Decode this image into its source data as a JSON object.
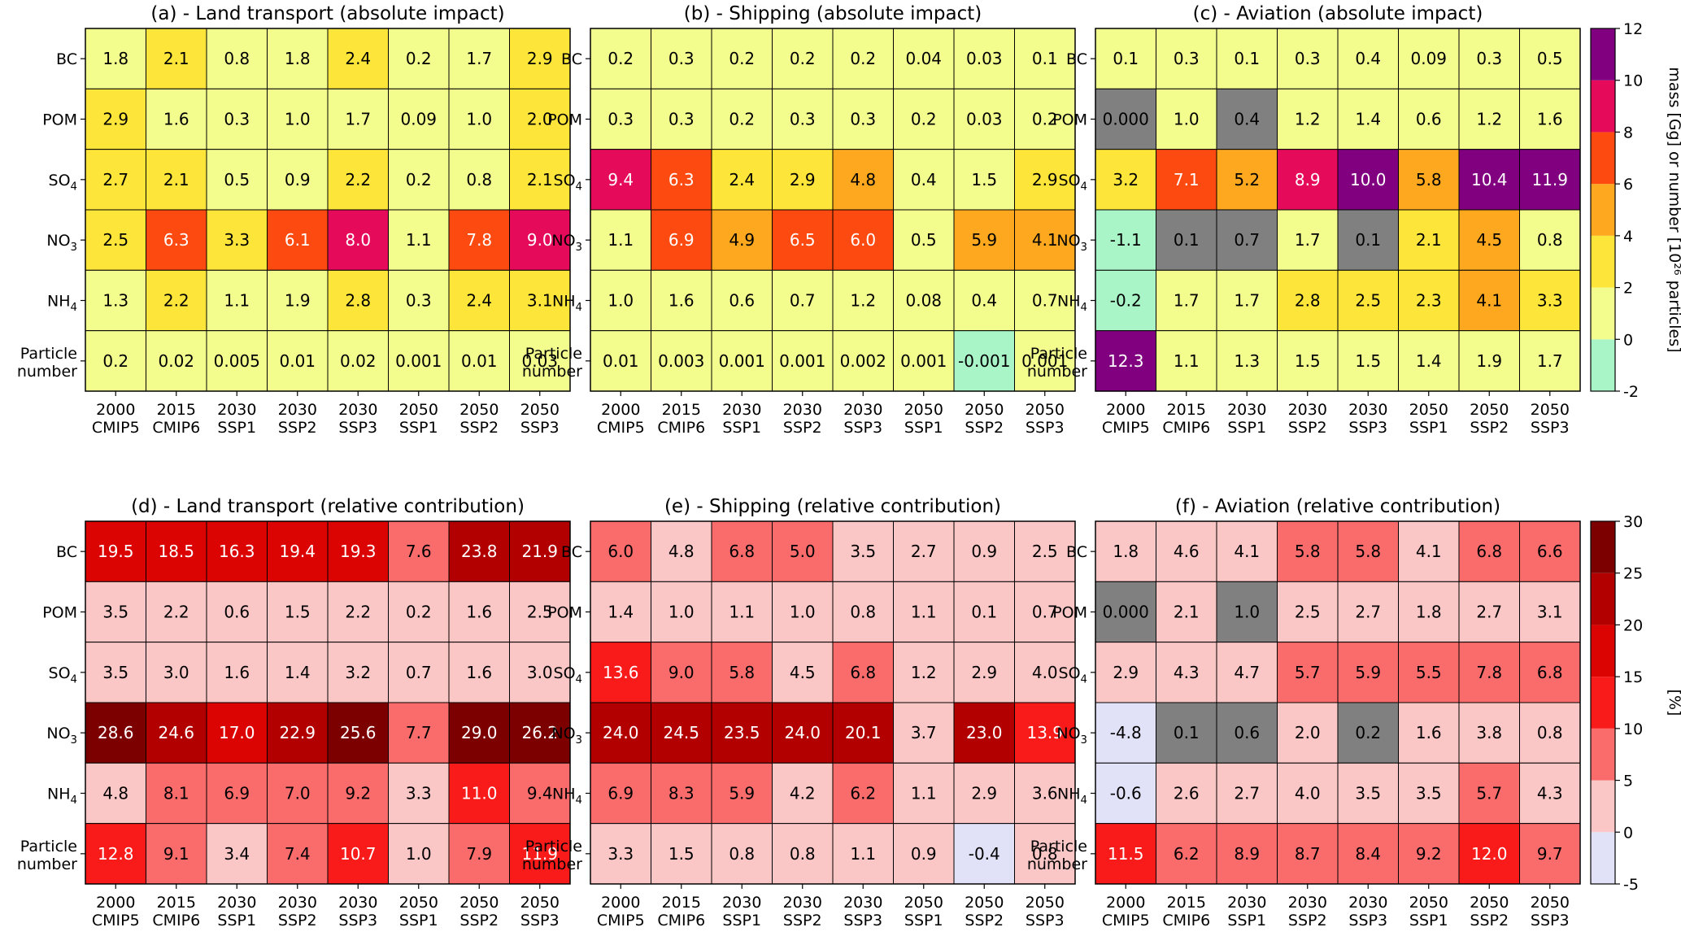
{
  "chart_data": [
    {
      "type": "heatmap",
      "title": "(a) - Land transport (absolute impact)",
      "rows": [
        "BC",
        "POM",
        "SO4",
        "NO3",
        "NH4",
        "Particle number"
      ],
      "columns": [
        "2000 CMIP5",
        "2015 CMIP6",
        "2030 SSP1",
        "2030 SSP2",
        "2030 SSP3",
        "2050 SSP1",
        "2050 SSP2",
        "2050 SSP3"
      ],
      "values": [
        [
          "1.8",
          "2.1",
          "0.8",
          "1.8",
          "2.4",
          "0.2",
          "1.7",
          "2.9"
        ],
        [
          "2.9",
          "1.6",
          "0.3",
          "1.0",
          "1.7",
          "0.09",
          "1.0",
          "2.0"
        ],
        [
          "2.7",
          "2.1",
          "0.5",
          "0.9",
          "2.2",
          "0.2",
          "0.8",
          "2.1"
        ],
        [
          "2.5",
          "6.3",
          "3.3",
          "6.1",
          "8.0",
          "1.1",
          "7.8",
          "9.0"
        ],
        [
          "1.3",
          "2.2",
          "1.1",
          "1.9",
          "2.8",
          "0.3",
          "2.4",
          "3.1"
        ],
        [
          "0.2",
          "0.02",
          "0.005",
          "0.01",
          "0.02",
          "0.001",
          "0.01",
          "0.03"
        ]
      ],
      "colorbar": "absolute",
      "grey_cells": []
    },
    {
      "type": "heatmap",
      "title": "(b) - Shipping (absolute impact)",
      "rows": [
        "BC",
        "POM",
        "SO4",
        "NO3",
        "NH4",
        "Particle number"
      ],
      "columns": [
        "2000 CMIP5",
        "2015 CMIP6",
        "2030 SSP1",
        "2030 SSP2",
        "2030 SSP3",
        "2050 SSP1",
        "2050 SSP2",
        "2050 SSP3"
      ],
      "values": [
        [
          "0.2",
          "0.3",
          "0.2",
          "0.2",
          "0.2",
          "0.04",
          "0.03",
          "0.1"
        ],
        [
          "0.3",
          "0.3",
          "0.2",
          "0.3",
          "0.3",
          "0.2",
          "0.03",
          "0.2"
        ],
        [
          "9.4",
          "6.3",
          "2.4",
          "2.9",
          "4.8",
          "0.4",
          "1.5",
          "2.9"
        ],
        [
          "1.1",
          "6.9",
          "4.9",
          "6.5",
          "6.0",
          "0.5",
          "5.9",
          "4.1"
        ],
        [
          "1.0",
          "1.6",
          "0.6",
          "0.7",
          "1.2",
          "0.08",
          "0.4",
          "0.7"
        ],
        [
          "0.01",
          "0.003",
          "0.001",
          "0.001",
          "0.002",
          "0.001",
          "-0.001",
          "0.001"
        ]
      ],
      "colorbar": "absolute",
      "grey_cells": []
    },
    {
      "type": "heatmap",
      "title": "(c) - Aviation (absolute impact)",
      "rows": [
        "BC",
        "POM",
        "SO4",
        "NO3",
        "NH4",
        "Particle number"
      ],
      "columns": [
        "2000 CMIP5",
        "2015 CMIP6",
        "2030 SSP1",
        "2030 SSP2",
        "2030 SSP3",
        "2050 SSP1",
        "2050 SSP2",
        "2050 SSP3"
      ],
      "values": [
        [
          "0.1",
          "0.3",
          "0.1",
          "0.3",
          "0.4",
          "0.09",
          "0.3",
          "0.5"
        ],
        [
          "0.000",
          "1.0",
          "0.4",
          "1.2",
          "1.4",
          "0.6",
          "1.2",
          "1.6"
        ],
        [
          "3.2",
          "7.1",
          "5.2",
          "8.9",
          "10.0",
          "5.8",
          "10.4",
          "11.9"
        ],
        [
          "-1.1",
          "0.1",
          "0.7",
          "1.7",
          "0.1",
          "2.1",
          "4.5",
          "0.8"
        ],
        [
          "-0.2",
          "1.7",
          "1.7",
          "2.8",
          "2.5",
          "2.3",
          "4.1",
          "3.3"
        ],
        [
          "12.3",
          "1.1",
          "1.3",
          "1.5",
          "1.5",
          "1.4",
          "1.9",
          "1.7"
        ]
      ],
      "colorbar": "absolute",
      "grey_cells": [
        [
          1,
          0
        ],
        [
          1,
          2
        ],
        [
          3,
          1
        ],
        [
          3,
          2
        ],
        [
          3,
          4
        ]
      ]
    },
    {
      "type": "heatmap",
      "title": "(d) - Land transport (relative contribution)",
      "rows": [
        "BC",
        "POM",
        "SO4",
        "NO3",
        "NH4",
        "Particle number"
      ],
      "columns": [
        "2000 CMIP5",
        "2015 CMIP6",
        "2030 SSP1",
        "2030 SSP2",
        "2030 SSP3",
        "2050 SSP1",
        "2050 SSP2",
        "2050 SSP3"
      ],
      "values": [
        [
          "19.5",
          "18.5",
          "16.3",
          "19.4",
          "19.3",
          "7.6",
          "23.8",
          "21.9"
        ],
        [
          "3.5",
          "2.2",
          "0.6",
          "1.5",
          "2.2",
          "0.2",
          "1.6",
          "2.5"
        ],
        [
          "3.5",
          "3.0",
          "1.6",
          "1.4",
          "3.2",
          "0.7",
          "1.6",
          "3.0"
        ],
        [
          "28.6",
          "24.6",
          "17.0",
          "22.9",
          "25.6",
          "7.7",
          "29.0",
          "26.2"
        ],
        [
          "4.8",
          "8.1",
          "6.9",
          "7.0",
          "9.2",
          "3.3",
          "11.0",
          "9.4"
        ],
        [
          "12.8",
          "9.1",
          "3.4",
          "7.4",
          "10.7",
          "1.0",
          "7.9",
          "11.9"
        ]
      ],
      "colorbar": "relative",
      "grey_cells": []
    },
    {
      "type": "heatmap",
      "title": "(e) - Shipping (relative contribution)",
      "rows": [
        "BC",
        "POM",
        "SO4",
        "NO3",
        "NH4",
        "Particle number"
      ],
      "columns": [
        "2000 CMIP5",
        "2015 CMIP6",
        "2030 SSP1",
        "2030 SSP2",
        "2030 SSP3",
        "2050 SSP1",
        "2050 SSP2",
        "2050 SSP3"
      ],
      "values": [
        [
          "6.0",
          "4.8",
          "6.8",
          "5.0",
          "3.5",
          "2.7",
          "0.9",
          "2.5"
        ],
        [
          "1.4",
          "1.0",
          "1.1",
          "1.0",
          "0.8",
          "1.1",
          "0.1",
          "0.7"
        ],
        [
          "13.6",
          "9.0",
          "5.8",
          "4.5",
          "6.8",
          "1.2",
          "2.9",
          "4.0"
        ],
        [
          "24.0",
          "24.5",
          "23.5",
          "24.0",
          "20.1",
          "3.7",
          "23.0",
          "13.9"
        ],
        [
          "6.9",
          "8.3",
          "5.9",
          "4.2",
          "6.2",
          "1.1",
          "2.9",
          "3.6"
        ],
        [
          "3.3",
          "1.5",
          "0.8",
          "0.8",
          "1.1",
          "0.9",
          "-0.4",
          "0.8"
        ]
      ],
      "colorbar": "relative",
      "grey_cells": []
    },
    {
      "type": "heatmap",
      "title": "(f) - Aviation (relative contribution)",
      "rows": [
        "BC",
        "POM",
        "SO4",
        "NO3",
        "NH4",
        "Particle number"
      ],
      "columns": [
        "2000 CMIP5",
        "2015 CMIP6",
        "2030 SSP1",
        "2030 SSP2",
        "2030 SSP3",
        "2050 SSP1",
        "2050 SSP2",
        "2050 SSP3"
      ],
      "values": [
        [
          "1.8",
          "4.6",
          "4.1",
          "5.8",
          "5.8",
          "4.1",
          "6.8",
          "6.6"
        ],
        [
          "0.000",
          "2.1",
          "1.0",
          "2.5",
          "2.7",
          "1.8",
          "2.7",
          "3.1"
        ],
        [
          "2.9",
          "4.3",
          "4.7",
          "5.7",
          "5.9",
          "5.5",
          "7.8",
          "6.8"
        ],
        [
          "-4.8",
          "0.1",
          "0.6",
          "2.0",
          "0.2",
          "1.6",
          "3.8",
          "0.8"
        ],
        [
          "-0.6",
          "2.6",
          "2.7",
          "4.0",
          "3.5",
          "3.5",
          "5.7",
          "4.3"
        ],
        [
          "11.5",
          "6.2",
          "8.9",
          "8.7",
          "8.4",
          "9.2",
          "12.0",
          "9.7"
        ]
      ],
      "colorbar": "relative",
      "grey_cells": [
        [
          1,
          0
        ],
        [
          1,
          2
        ],
        [
          3,
          1
        ],
        [
          3,
          2
        ],
        [
          3,
          4
        ]
      ]
    }
  ],
  "colorbars": {
    "absolute": {
      "label": "mass [Gg] or number [10²⁶ particles]",
      "ticks": [
        -2,
        0,
        2,
        4,
        6,
        8,
        10,
        12
      ],
      "colors": [
        "#aaf5c8",
        "#f3fd8e",
        "#fde53a",
        "#fda81e",
        "#fd4a10",
        "#e50b5a",
        "#800080"
      ]
    },
    "relative": {
      "label": "[%]",
      "ticks": [
        -5,
        0,
        5,
        10,
        15,
        20,
        25,
        30
      ],
      "colors": [
        "#e1e2f7",
        "#fbc6c6",
        "#fa6c6c",
        "#f91a1a",
        "#dc0303",
        "#b20000",
        "#7d0000"
      ]
    }
  },
  "grey_color": "#808080"
}
